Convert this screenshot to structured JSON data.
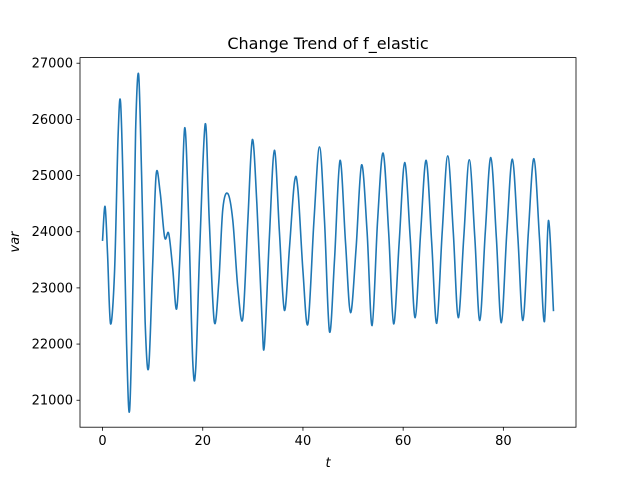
{
  "chart_data": {
    "type": "line",
    "title": "Change Trend of f_elastic",
    "xlabel": "t",
    "ylabel": "var",
    "xlim": [
      -4.5,
      94.5
    ],
    "ylim": [
      20520,
      27100
    ],
    "x_ticks": [
      0,
      20,
      40,
      60,
      80
    ],
    "y_ticks": [
      21000,
      22000,
      23000,
      24000,
      25000,
      26000,
      27000
    ],
    "x_tick_labels": [
      "0",
      "20",
      "40",
      "60",
      "80"
    ],
    "y_tick_labels": [
      "21000",
      "22000",
      "23000",
      "24000",
      "25000",
      "26000",
      "27000"
    ],
    "grid": false,
    "legend": "none",
    "line_color": "#1f77b4",
    "series": [
      {
        "points": [
          [
            0,
            23850
          ],
          [
            0.5,
            24450
          ],
          [
            1.0,
            23600
          ],
          [
            1.6,
            22360
          ],
          [
            2.4,
            23300
          ],
          [
            3.1,
            25700
          ],
          [
            3.6,
            26300
          ],
          [
            4.2,
            24500
          ],
          [
            4.8,
            22000
          ],
          [
            5.4,
            20820
          ],
          [
            6.1,
            23200
          ],
          [
            6.6,
            25800
          ],
          [
            7.2,
            26800
          ],
          [
            7.8,
            25000
          ],
          [
            8.5,
            22400
          ],
          [
            9.2,
            21580
          ],
          [
            10.0,
            23400
          ],
          [
            10.7,
            25020
          ],
          [
            11.5,
            24700
          ],
          [
            12.4,
            23900
          ],
          [
            13.2,
            23970
          ],
          [
            14.0,
            23350
          ],
          [
            14.8,
            22630
          ],
          [
            15.6,
            23900
          ],
          [
            16.4,
            25850
          ],
          [
            17.2,
            24200
          ],
          [
            18.0,
            21700
          ],
          [
            18.6,
            21570
          ],
          [
            19.4,
            23700
          ],
          [
            20.5,
            25920
          ],
          [
            21.3,
            24200
          ],
          [
            22.3,
            22400
          ],
          [
            23.2,
            23100
          ],
          [
            24.0,
            24400
          ],
          [
            25.0,
            24680
          ],
          [
            26.0,
            24200
          ],
          [
            27.0,
            23000
          ],
          [
            28.0,
            22460
          ],
          [
            29.0,
            24200
          ],
          [
            29.9,
            25640
          ],
          [
            30.8,
            24500
          ],
          [
            31.8,
            22500
          ],
          [
            32.3,
            21970
          ],
          [
            33.3,
            23900
          ],
          [
            34.3,
            25450
          ],
          [
            35.3,
            24000
          ],
          [
            36.3,
            22600
          ],
          [
            37.3,
            23700
          ],
          [
            38.3,
            24880
          ],
          [
            39.0,
            24750
          ],
          [
            40.0,
            23300
          ],
          [
            41.0,
            22360
          ],
          [
            42.2,
            24200
          ],
          [
            43.3,
            25510
          ],
          [
            44.3,
            24200
          ],
          [
            45.3,
            22220
          ],
          [
            46.3,
            23500
          ],
          [
            47.4,
            25270
          ],
          [
            48.5,
            23800
          ],
          [
            49.5,
            22560
          ],
          [
            50.6,
            23700
          ],
          [
            51.7,
            25190
          ],
          [
            52.8,
            24000
          ],
          [
            53.8,
            22330
          ],
          [
            54.9,
            24200
          ],
          [
            56.0,
            25400
          ],
          [
            57.1,
            24000
          ],
          [
            58.1,
            22360
          ],
          [
            59.2,
            23800
          ],
          [
            60.3,
            25230
          ],
          [
            61.4,
            23900
          ],
          [
            62.4,
            22470
          ],
          [
            63.5,
            24000
          ],
          [
            64.6,
            25270
          ],
          [
            65.7,
            23800
          ],
          [
            66.7,
            22370
          ],
          [
            67.8,
            24000
          ],
          [
            68.9,
            25350
          ],
          [
            70.0,
            24000
          ],
          [
            71.0,
            22470
          ],
          [
            72.1,
            23900
          ],
          [
            73.2,
            25280
          ],
          [
            74.3,
            23900
          ],
          [
            75.3,
            22420
          ],
          [
            76.4,
            24000
          ],
          [
            77.5,
            25320
          ],
          [
            78.6,
            23900
          ],
          [
            79.6,
            22380
          ],
          [
            80.7,
            24000
          ],
          [
            81.8,
            25290
          ],
          [
            82.9,
            23900
          ],
          [
            83.9,
            22420
          ],
          [
            85.0,
            24000
          ],
          [
            86.1,
            25300
          ],
          [
            87.2,
            23900
          ],
          [
            88.2,
            22400
          ],
          [
            89.0,
            24200
          ],
          [
            90.0,
            22600
          ]
        ]
      }
    ]
  }
}
